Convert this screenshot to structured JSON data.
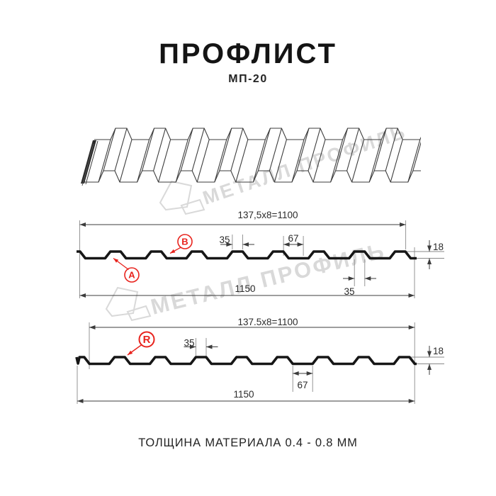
{
  "header": {
    "title": "ПРОФЛИСТ",
    "subtitle": "МП-20"
  },
  "footer": {
    "text": "ТОЛЩИНА МАТЕРИАЛА 0.4 - 0.8 ММ"
  },
  "watermark": {
    "text": "МЕТАЛЛ ПРОФИЛЬ"
  },
  "colors": {
    "accent_red": "#e8231d",
    "drawing_line": "#3c3c3c",
    "profile_line": "#161616",
    "extension_line": "#8a8a8a",
    "dim_line": "#3c3c3c",
    "watermark_gray": "#d9d9d9"
  },
  "top_section": {
    "dim_working_width": "137,5x8=1100",
    "dim_crest_width": "35",
    "dim_valley_width": "67",
    "dim_height": "18",
    "dim_underside_width": "35",
    "dim_total_width": "1150",
    "label_a": "A",
    "label_b": "B"
  },
  "bottom_section": {
    "dim_working_width": "137.5x8=1100",
    "dim_crest_width": "35",
    "dim_valley_width": "67",
    "dim_height": "18",
    "dim_total_width": "1150",
    "label_r": "R"
  }
}
